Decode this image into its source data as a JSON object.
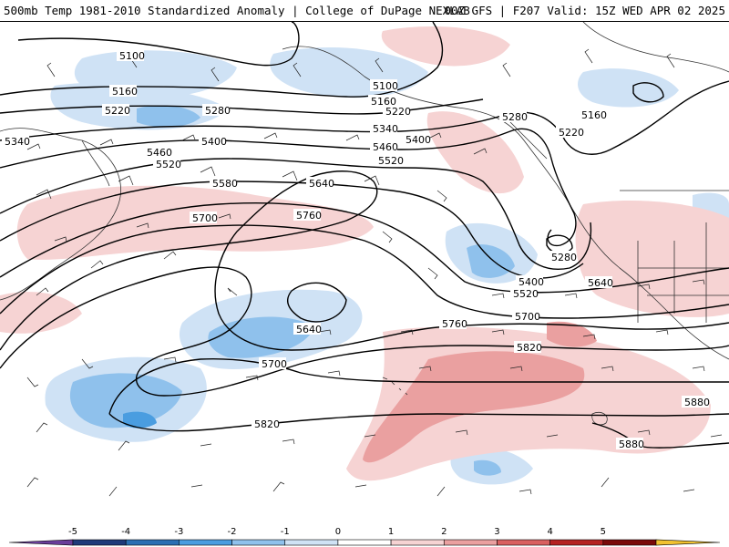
{
  "header": {
    "title_left": "500mb Temp 1981-2010 Standardized Anomaly | College of DuPage NEXLAB",
    "title_right": "00Z GFS | F207 Valid: 15Z WED APR 02 2025"
  },
  "contour_labels": [
    "5100",
    "5160",
    "5220",
    "5280",
    "5340",
    "5400",
    "5460",
    "5520",
    "5580",
    "5640",
    "5700",
    "5760",
    "5820",
    "5880"
  ],
  "colorbar": {
    "ticks": [
      "-5",
      "-4",
      "-3",
      "-2",
      "-1",
      "0",
      "1",
      "2",
      "3",
      "4",
      "5"
    ],
    "colors": [
      "#6a3d9a",
      "#1f3a7a",
      "#2b6fb3",
      "#4a9de0",
      "#8fc1ec",
      "#cfe2f5",
      "#ffffff",
      "#f6d3d3",
      "#eaa0a0",
      "#d96060",
      "#b52222",
      "#7a0a0a",
      "#f2c230"
    ]
  }
}
